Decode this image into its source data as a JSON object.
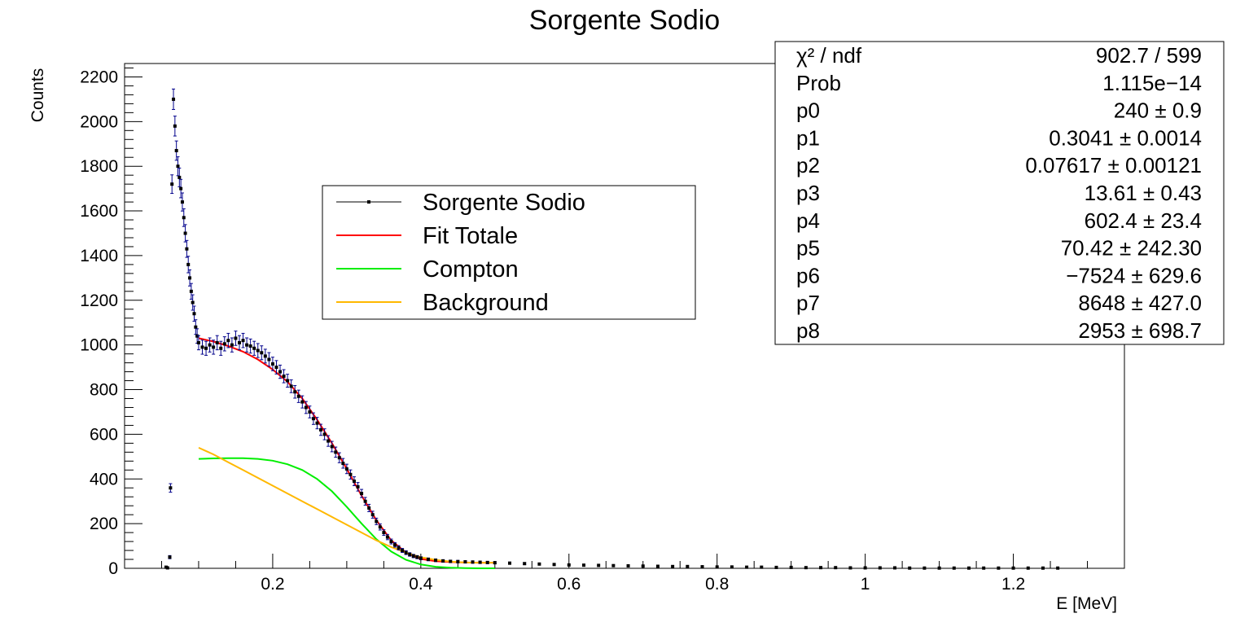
{
  "chart_data": {
    "type": "scatter",
    "title": "Sorgente Sodio",
    "xlabel": "E [MeV]",
    "ylabel": "Counts",
    "xlim": [
      0,
      1.35
    ],
    "ylim": [
      0,
      2260
    ],
    "x_ticks": [
      {
        "v": 0.2,
        "label": "0.2"
      },
      {
        "v": 0.4,
        "label": "0.4"
      },
      {
        "v": 0.6,
        "label": "0.6"
      },
      {
        "v": 0.8,
        "label": "0.8"
      },
      {
        "v": 1.0,
        "label": "1"
      },
      {
        "v": 1.2,
        "label": "1.2"
      }
    ],
    "y_ticks": [
      {
        "v": 0,
        "label": "0"
      },
      {
        "v": 200,
        "label": "200"
      },
      {
        "v": 400,
        "label": "400"
      },
      {
        "v": 600,
        "label": "600"
      },
      {
        "v": 800,
        "label": "800"
      },
      {
        "v": 1000,
        "label": "1000"
      },
      {
        "v": 1200,
        "label": "1200"
      },
      {
        "v": 1400,
        "label": "1400"
      },
      {
        "v": 1600,
        "label": "1600"
      },
      {
        "v": 1800,
        "label": "1800"
      },
      {
        "v": 2000,
        "label": "2000"
      },
      {
        "v": 2200,
        "label": "2200"
      }
    ],
    "legend": {
      "placement": "center",
      "entries": [
        {
          "name": "Sorgente Sodio",
          "color": "#000000"
        },
        {
          "name": "Fit Totale",
          "color": "#ff0000"
        },
        {
          "name": "Compton",
          "color": "#00ee00"
        },
        {
          "name": "Background",
          "color": "#ffb800"
        }
      ]
    },
    "stats_box": {
      "placement": "top-right",
      "rows": [
        {
          "label": "χ² / ndf",
          "value": "902.7 / 599"
        },
        {
          "label": "Prob",
          "value": "1.115e−14"
        },
        {
          "label": "p0",
          "value": "240 ± 0.9"
        },
        {
          "label": "p1",
          "value": "0.3041 ± 0.0014"
        },
        {
          "label": "p2",
          "value": "0.07617 ± 0.00121"
        },
        {
          "label": "p3",
          "value": "13.61 ± 0.43"
        },
        {
          "label": "p4",
          "value": "602.4 ± 23.4"
        },
        {
          "label": "p5",
          "value": "70.42 ± 242.30"
        },
        {
          "label": "p6",
          "value": "−7524 ± 629.6"
        },
        {
          "label": "p7",
          "value": "8648 ± 427.0"
        },
        {
          "label": "p8",
          "value": "2953 ± 698.7"
        }
      ]
    },
    "series": [
      {
        "name": "Sorgente Sodio",
        "color": "#000000",
        "error_color": "#00008b",
        "points": [
          [
            0.056,
            5
          ],
          [
            0.058,
            2
          ],
          [
            0.061,
            50
          ],
          [
            0.062,
            360
          ],
          [
            0.064,
            1720
          ],
          [
            0.066,
            2100
          ],
          [
            0.068,
            1980
          ],
          [
            0.07,
            1870
          ],
          [
            0.072,
            1800
          ],
          [
            0.074,
            1750
          ],
          [
            0.076,
            1700
          ],
          [
            0.078,
            1640
          ],
          [
            0.08,
            1570
          ],
          [
            0.082,
            1500
          ],
          [
            0.084,
            1430
          ],
          [
            0.086,
            1360
          ],
          [
            0.088,
            1300
          ],
          [
            0.09,
            1240
          ],
          [
            0.092,
            1190
          ],
          [
            0.094,
            1140
          ],
          [
            0.096,
            1080
          ],
          [
            0.098,
            1040
          ],
          [
            0.1,
            1010
          ],
          [
            0.105,
            990
          ],
          [
            0.11,
            985
          ],
          [
            0.115,
            1000
          ],
          [
            0.12,
            990
          ],
          [
            0.125,
            1010
          ],
          [
            0.13,
            985
          ],
          [
            0.135,
            1005
          ],
          [
            0.14,
            1020
          ],
          [
            0.145,
            1000
          ],
          [
            0.15,
            1030
          ],
          [
            0.155,
            1010
          ],
          [
            0.16,
            1020
          ],
          [
            0.165,
            1000
          ],
          [
            0.17,
            995
          ],
          [
            0.175,
            985
          ],
          [
            0.18,
            975
          ],
          [
            0.185,
            965
          ],
          [
            0.19,
            950
          ],
          [
            0.195,
            935
          ],
          [
            0.2,
            915
          ],
          [
            0.205,
            900
          ],
          [
            0.21,
            880
          ],
          [
            0.215,
            860
          ],
          [
            0.22,
            840
          ],
          [
            0.225,
            815
          ],
          [
            0.23,
            790
          ],
          [
            0.235,
            770
          ],
          [
            0.24,
            745
          ],
          [
            0.245,
            720
          ],
          [
            0.25,
            700
          ],
          [
            0.255,
            670
          ],
          [
            0.26,
            650
          ],
          [
            0.265,
            620
          ],
          [
            0.27,
            600
          ],
          [
            0.275,
            570
          ],
          [
            0.28,
            545
          ],
          [
            0.285,
            520
          ],
          [
            0.29,
            495
          ],
          [
            0.295,
            470
          ],
          [
            0.3,
            445
          ],
          [
            0.305,
            420
          ],
          [
            0.31,
            390
          ],
          [
            0.315,
            365
          ],
          [
            0.32,
            335
          ],
          [
            0.325,
            300
          ],
          [
            0.33,
            270
          ],
          [
            0.335,
            240
          ],
          [
            0.34,
            210
          ],
          [
            0.345,
            185
          ],
          [
            0.35,
            160
          ],
          [
            0.355,
            140
          ],
          [
            0.36,
            120
          ],
          [
            0.365,
            105
          ],
          [
            0.37,
            92
          ],
          [
            0.375,
            80
          ],
          [
            0.38,
            70
          ],
          [
            0.385,
            62
          ],
          [
            0.39,
            55
          ],
          [
            0.395,
            50
          ],
          [
            0.4,
            45
          ],
          [
            0.41,
            40
          ],
          [
            0.42,
            36
          ],
          [
            0.43,
            33
          ],
          [
            0.44,
            31
          ],
          [
            0.45,
            30
          ],
          [
            0.46,
            29
          ],
          [
            0.47,
            28
          ],
          [
            0.48,
            27
          ],
          [
            0.49,
            26
          ],
          [
            0.5,
            25
          ],
          [
            0.52,
            23
          ],
          [
            0.54,
            21
          ],
          [
            0.56,
            19
          ],
          [
            0.58,
            17
          ],
          [
            0.6,
            15
          ],
          [
            0.62,
            14
          ],
          [
            0.64,
            13
          ],
          [
            0.66,
            12
          ],
          [
            0.68,
            11
          ],
          [
            0.7,
            10
          ],
          [
            0.72,
            9
          ],
          [
            0.74,
            8
          ],
          [
            0.76,
            8
          ],
          [
            0.78,
            7
          ],
          [
            0.8,
            6
          ],
          [
            0.82,
            6
          ],
          [
            0.84,
            5
          ],
          [
            0.86,
            5
          ],
          [
            0.88,
            4
          ],
          [
            0.9,
            4
          ],
          [
            0.92,
            3
          ],
          [
            0.94,
            3
          ],
          [
            0.96,
            3
          ],
          [
            0.98,
            2
          ],
          [
            1.0,
            2
          ],
          [
            1.02,
            2
          ],
          [
            1.04,
            2
          ],
          [
            1.06,
            1
          ],
          [
            1.08,
            1
          ],
          [
            1.1,
            1
          ],
          [
            1.12,
            1
          ],
          [
            1.14,
            1
          ],
          [
            1.16,
            1
          ],
          [
            1.18,
            1
          ],
          [
            1.2,
            1
          ],
          [
            1.22,
            1
          ],
          [
            1.24,
            1
          ],
          [
            1.26,
            1
          ]
        ]
      },
      {
        "name": "Fit Totale",
        "color": "#ff0000",
        "points": [
          [
            0.1,
            1030
          ],
          [
            0.12,
            1015
          ],
          [
            0.14,
            995
          ],
          [
            0.16,
            970
          ],
          [
            0.18,
            935
          ],
          [
            0.2,
            890
          ],
          [
            0.22,
            835
          ],
          [
            0.24,
            760
          ],
          [
            0.26,
            665
          ],
          [
            0.28,
            560
          ],
          [
            0.3,
            445
          ],
          [
            0.32,
            325
          ],
          [
            0.34,
            215
          ],
          [
            0.36,
            125
          ],
          [
            0.38,
            70
          ],
          [
            0.4,
            42
          ],
          [
            0.42,
            32
          ],
          [
            0.44,
            28
          ],
          [
            0.46,
            26
          ],
          [
            0.48,
            25
          ],
          [
            0.5,
            25
          ]
        ]
      },
      {
        "name": "Compton",
        "color": "#00ee00",
        "points": [
          [
            0.1,
            490
          ],
          [
            0.12,
            492
          ],
          [
            0.14,
            493
          ],
          [
            0.16,
            493
          ],
          [
            0.18,
            490
          ],
          [
            0.2,
            482
          ],
          [
            0.22,
            466
          ],
          [
            0.24,
            440
          ],
          [
            0.26,
            400
          ],
          [
            0.28,
            345
          ],
          [
            0.3,
            275
          ],
          [
            0.32,
            200
          ],
          [
            0.34,
            130
          ],
          [
            0.36,
            75
          ],
          [
            0.38,
            38
          ],
          [
            0.4,
            17
          ],
          [
            0.42,
            7
          ],
          [
            0.44,
            3
          ],
          [
            0.46,
            1
          ],
          [
            0.48,
            0
          ],
          [
            0.5,
            0
          ]
        ]
      },
      {
        "name": "Background",
        "color": "#ffb800",
        "points": [
          [
            0.1,
            540
          ],
          [
            0.12,
            510
          ],
          [
            0.14,
            475
          ],
          [
            0.16,
            440
          ],
          [
            0.18,
            405
          ],
          [
            0.2,
            370
          ],
          [
            0.22,
            335
          ],
          [
            0.24,
            300
          ],
          [
            0.26,
            265
          ],
          [
            0.28,
            230
          ],
          [
            0.3,
            195
          ],
          [
            0.32,
            160
          ],
          [
            0.34,
            125
          ],
          [
            0.36,
            95
          ],
          [
            0.38,
            70
          ],
          [
            0.4,
            50
          ],
          [
            0.42,
            38
          ],
          [
            0.44,
            30
          ],
          [
            0.46,
            26
          ],
          [
            0.48,
            25
          ],
          [
            0.5,
            25
          ]
        ]
      }
    ]
  }
}
